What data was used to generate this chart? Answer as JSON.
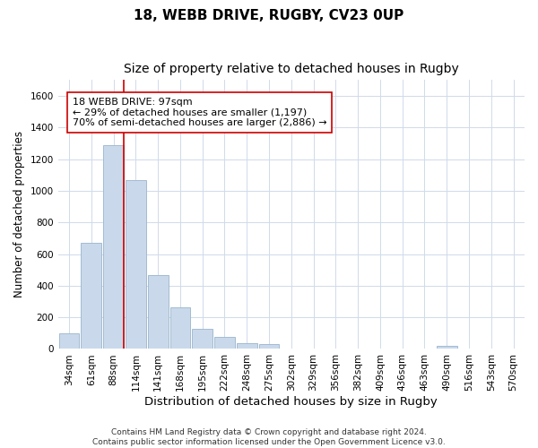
{
  "title": "18, WEBB DRIVE, RUGBY, CV23 0UP",
  "subtitle": "Size of property relative to detached houses in Rugby",
  "xlabel": "Distribution of detached houses by size in Rugby",
  "ylabel": "Number of detached properties",
  "categories": [
    "34sqm",
    "61sqm",
    "88sqm",
    "114sqm",
    "141sqm",
    "168sqm",
    "195sqm",
    "222sqm",
    "248sqm",
    "275sqm",
    "302sqm",
    "329sqm",
    "356sqm",
    "382sqm",
    "409sqm",
    "436sqm",
    "463sqm",
    "490sqm",
    "516sqm",
    "543sqm",
    "570sqm"
  ],
  "values": [
    100,
    670,
    1290,
    1070,
    465,
    265,
    130,
    75,
    35,
    30,
    0,
    0,
    0,
    0,
    0,
    0,
    0,
    20,
    0,
    0,
    0
  ],
  "bar_color": "#c9d9eb",
  "bar_edge_color": "#9ab4cc",
  "grid_color": "#d0daea",
  "vline_color": "#cc0000",
  "annotation_text": "18 WEBB DRIVE: 97sqm\n← 29% of detached houses are smaller (1,197)\n70% of semi-detached houses are larger (2,886) →",
  "annotation_box_color": "#ffffff",
  "annotation_box_edge": "#cc0000",
  "ylim": [
    0,
    1700
  ],
  "yticks": [
    0,
    200,
    400,
    600,
    800,
    1000,
    1200,
    1400,
    1600
  ],
  "footer": "Contains HM Land Registry data © Crown copyright and database right 2024.\nContains public sector information licensed under the Open Government Licence v3.0.",
  "title_fontsize": 11,
  "subtitle_fontsize": 10,
  "xlabel_fontsize": 9.5,
  "ylabel_fontsize": 8.5,
  "tick_fontsize": 7.5,
  "footer_fontsize": 6.5
}
